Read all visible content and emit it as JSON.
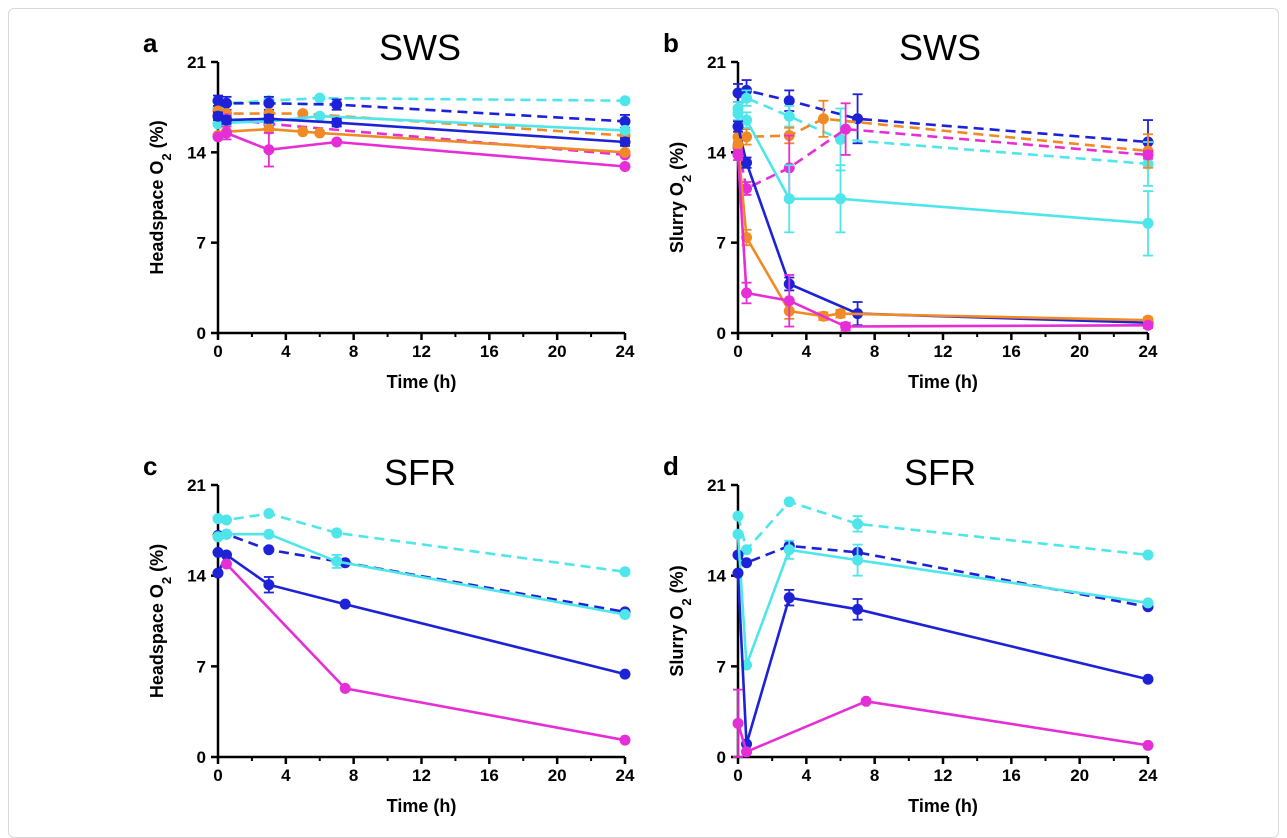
{
  "colors": {
    "cyan": "#4ee6ea",
    "blue": "#1e22d6",
    "magenta": "#e62ed6",
    "orange": "#f08a24"
  },
  "panels": [
    {
      "letter": "a",
      "title": "SWS",
      "ylabel": "Headspace O",
      "ysub": "2",
      "yunit": " (%)",
      "xlabel": "Time (h)"
    },
    {
      "letter": "b",
      "title": "SWS",
      "ylabel": "Slurry O",
      "ysub": "2",
      "yunit": " (%)",
      "xlabel": "Time (h)"
    },
    {
      "letter": "c",
      "title": "SFR",
      "ylabel": "Headspace O",
      "ysub": "2",
      "yunit": " (%)",
      "xlabel": "Time (h)"
    },
    {
      "letter": "d",
      "title": "SFR",
      "ylabel": "Slurry O",
      "ysub": "2",
      "yunit": " (%)",
      "xlabel": "Time (h)"
    }
  ],
  "chart_data": [
    {
      "type": "line",
      "title": "SWS",
      "xlabel": "Time (h)",
      "ylabel": "Headspace O2 (%)",
      "xlim": [
        0,
        24
      ],
      "ylim": [
        0,
        21
      ],
      "xticks": [
        0,
        4,
        8,
        12,
        16,
        20,
        24
      ],
      "yticks": [
        0,
        7,
        14,
        21
      ],
      "series": [
        {
          "color": "cyan",
          "dash": true,
          "points": [
            [
              0,
              17.4
            ],
            [
              0.5,
              17.8
            ],
            [
              3,
              18.0
            ],
            [
              6,
              18.2
            ],
            [
              24,
              18.0
            ]
          ],
          "errors": [
            0,
            0,
            0,
            0,
            0
          ]
        },
        {
          "color": "blue",
          "dash": true,
          "points": [
            [
              0,
              18.0
            ],
            [
              0.5,
              17.8
            ],
            [
              3,
              17.8
            ],
            [
              7,
              17.7
            ],
            [
              24,
              16.4
            ]
          ],
          "errors": [
            0.4,
            0.5,
            0.5,
            0.4,
            0.5
          ]
        },
        {
          "color": "orange",
          "dash": true,
          "points": [
            [
              0,
              17.2
            ],
            [
              0.5,
              17.0
            ],
            [
              3,
              17.0
            ],
            [
              5,
              17.0
            ],
            [
              24,
              15.3
            ]
          ],
          "errors": [
            0,
            0,
            0,
            0,
            0
          ]
        },
        {
          "color": "magenta",
          "dash": true,
          "points": [
            [
              0,
              16.8
            ],
            [
              0.5,
              16.6
            ],
            [
              3,
              16.2
            ],
            [
              24,
              13.8
            ]
          ],
          "errors": [
            0,
            0,
            0,
            0
          ]
        },
        {
          "color": "cyan",
          "dash": false,
          "points": [
            [
              0,
              16.2
            ],
            [
              0.5,
              16.3
            ],
            [
              3,
              16.4
            ],
            [
              6,
              16.8
            ],
            [
              24,
              15.7
            ]
          ],
          "errors": [
            0,
            0,
            0,
            0,
            0
          ]
        },
        {
          "color": "blue",
          "dash": false,
          "points": [
            [
              0,
              16.8
            ],
            [
              0.5,
              16.5
            ],
            [
              3,
              16.6
            ],
            [
              7,
              16.3
            ],
            [
              24,
              14.8
            ]
          ],
          "errors": [
            0.3,
            0.3,
            0.3,
            0.3,
            0.3
          ]
        },
        {
          "color": "orange",
          "dash": false,
          "points": [
            [
              0,
              15.3
            ],
            [
              0.5,
              15.6
            ],
            [
              3,
              15.8
            ],
            [
              5,
              15.6
            ],
            [
              6,
              15.5
            ],
            [
              24,
              14.0
            ]
          ],
          "errors": [
            0,
            0,
            0,
            0,
            0,
            0
          ]
        },
        {
          "color": "magenta",
          "dash": false,
          "points": [
            [
              0,
              15.2
            ],
            [
              0.5,
              15.5
            ],
            [
              3,
              14.2
            ],
            [
              7,
              14.8
            ],
            [
              24,
              12.9
            ]
          ],
          "errors": [
            0,
            0.5,
            1.3,
            0,
            0
          ]
        }
      ]
    },
    {
      "type": "line",
      "title": "SWS",
      "xlabel": "Time (h)",
      "ylabel": "Slurry O2 (%)",
      "xlim": [
        0,
        24
      ],
      "ylim": [
        0,
        21
      ],
      "xticks": [
        0,
        4,
        8,
        12,
        16,
        20,
        24
      ],
      "yticks": [
        0,
        7,
        14,
        21
      ],
      "series": [
        {
          "color": "blue",
          "dash": true,
          "points": [
            [
              0,
              18.6
            ],
            [
              0.5,
              18.8
            ],
            [
              3,
              18.0
            ],
            [
              7,
              16.6
            ],
            [
              24,
              14.8
            ]
          ],
          "errors": [
            0.7,
            0.8,
            0.8,
            1.9,
            1.7
          ]
        },
        {
          "color": "cyan",
          "dash": true,
          "points": [
            [
              0,
              17.4
            ],
            [
              0.5,
              18.2
            ],
            [
              3,
              16.8
            ],
            [
              6,
              15.0
            ],
            [
              24,
              13.1
            ]
          ],
          "errors": [
            0.5,
            0.6,
            0.8,
            2.4,
            1.7
          ]
        },
        {
          "color": "orange",
          "dash": true,
          "points": [
            [
              0,
              15.2
            ],
            [
              0.5,
              15.2
            ],
            [
              3,
              15.3
            ],
            [
              5,
              16.6
            ],
            [
              24,
              14.1
            ]
          ],
          "errors": [
            0.4,
            0.6,
            0.6,
            1.4,
            1.3
          ]
        },
        {
          "color": "magenta",
          "dash": true,
          "points": [
            [
              0,
              14.4
            ],
            [
              0.5,
              11.2
            ],
            [
              3,
              12.8
            ],
            [
              6.3,
              15.8
            ],
            [
              24,
              13.8
            ]
          ],
          "errors": [
            0.4,
            0.5,
            2.5,
            2.0,
            0.3
          ]
        },
        {
          "color": "cyan",
          "dash": false,
          "points": [
            [
              0,
              17.0
            ],
            [
              0.5,
              16.5
            ],
            [
              3,
              10.4
            ],
            [
              6,
              10.4
            ],
            [
              24,
              8.5
            ]
          ],
          "errors": [
            0.5,
            0.6,
            2.6,
            2.6,
            2.5
          ]
        },
        {
          "color": "blue",
          "dash": false,
          "points": [
            [
              0,
              16.0
            ],
            [
              0.5,
              13.2
            ],
            [
              3,
              3.8
            ],
            [
              7,
              1.5
            ],
            [
              24,
              0.8
            ]
          ],
          "errors": [
            0.4,
            0.4,
            0.5,
            0.9,
            0.4
          ]
        },
        {
          "color": "orange",
          "dash": false,
          "points": [
            [
              0,
              14.6
            ],
            [
              0.5,
              7.4
            ],
            [
              3,
              1.7
            ],
            [
              5,
              1.3
            ],
            [
              6,
              1.5
            ],
            [
              24,
              1.0
            ]
          ],
          "errors": [
            0.4,
            0.6,
            0.6,
            0.3,
            0.3,
            0.2
          ]
        },
        {
          "color": "magenta",
          "dash": false,
          "points": [
            [
              0,
              13.8
            ],
            [
              0.5,
              3.1
            ],
            [
              3,
              2.5
            ],
            [
              6.3,
              0.5
            ],
            [
              24,
              0.6
            ]
          ],
          "errors": [
            0.4,
            0.8,
            2.0,
            0.3,
            0.2
          ]
        }
      ]
    },
    {
      "type": "line",
      "title": "SFR",
      "xlabel": "Time (h)",
      "ylabel": "Headspace O2 (%)",
      "xlim": [
        0,
        24
      ],
      "ylim": [
        0,
        21
      ],
      "xticks": [
        0,
        4,
        8,
        12,
        16,
        20,
        24
      ],
      "yticks": [
        0,
        7,
        14,
        21
      ],
      "series": [
        {
          "color": "cyan",
          "dash": true,
          "points": [
            [
              0,
              18.4
            ],
            [
              0.5,
              18.3
            ],
            [
              3,
              18.8
            ],
            [
              7,
              17.3
            ],
            [
              24,
              14.3
            ]
          ],
          "errors": [
            0,
            0,
            0,
            0,
            0
          ]
        },
        {
          "color": "blue",
          "dash": true,
          "points": [
            [
              0,
              17.1
            ],
            [
              0.5,
              17.2
            ],
            [
              3,
              16.0
            ],
            [
              7.5,
              15.0
            ],
            [
              24,
              11.2
            ]
          ],
          "errors": [
            0,
            0,
            0,
            0,
            0
          ]
        },
        {
          "color": "cyan",
          "dash": false,
          "points": [
            [
              0,
              17.0
            ],
            [
              0.5,
              17.2
            ],
            [
              3,
              17.2
            ],
            [
              7,
              15.1
            ],
            [
              24,
              11.0
            ]
          ],
          "errors": [
            0,
            0,
            0,
            0.5,
            0
          ]
        },
        {
          "color": "blue",
          "dash": false,
          "points": [
            [
              0,
              14.2
            ],
            [
              0.5,
              15.6
            ],
            [
              3,
              13.3
            ],
            [
              7.5,
              11.8
            ],
            [
              24,
              6.4
            ]
          ],
          "errors": [
            0,
            0,
            0.6,
            0,
            0
          ]
        },
        {
          "color": "blue",
          "dash": false,
          "points": [
            [
              0,
              15.8
            ]
          ],
          "errors": [
            0
          ]
        },
        {
          "color": "magenta",
          "dash": false,
          "points": [
            [
              0.5,
              14.9
            ],
            [
              7.5,
              5.3
            ],
            [
              24,
              1.3
            ]
          ],
          "errors": [
            0,
            0,
            0
          ]
        }
      ]
    },
    {
      "type": "line",
      "title": "SFR",
      "xlabel": "Time (h)",
      "ylabel": "Slurry O2 (%)",
      "xlim": [
        0,
        24
      ],
      "ylim": [
        0,
        21
      ],
      "xticks": [
        0,
        4,
        8,
        12,
        16,
        20,
        24
      ],
      "yticks": [
        0,
        7,
        14,
        21
      ],
      "series": [
        {
          "color": "cyan",
          "dash": true,
          "points": [
            [
              0,
              18.6
            ],
            [
              0.5,
              16.0
            ],
            [
              3,
              19.7
            ],
            [
              7,
              18.0
            ],
            [
              24,
              15.6
            ]
          ],
          "errors": [
            0,
            0,
            0,
            0.6,
            0
          ]
        },
        {
          "color": "blue",
          "dash": true,
          "points": [
            [
              0,
              15.6
            ],
            [
              0.5,
              15.0
            ],
            [
              3,
              16.3
            ],
            [
              7,
              15.8
            ],
            [
              24,
              11.6
            ]
          ],
          "errors": [
            0,
            0,
            0,
            0,
            0
          ]
        },
        {
          "color": "cyan",
          "dash": false,
          "points": [
            [
              0,
              17.2
            ],
            [
              0.5,
              7.1
            ],
            [
              3,
              16.0
            ],
            [
              7,
              15.2
            ],
            [
              24,
              11.9
            ]
          ],
          "errors": [
            0,
            0,
            0.7,
            1.2,
            0
          ]
        },
        {
          "color": "blue",
          "dash": false,
          "points": [
            [
              0,
              14.2
            ],
            [
              0.5,
              1.0
            ],
            [
              3,
              12.3
            ],
            [
              7,
              11.4
            ],
            [
              24,
              6.0
            ]
          ],
          "errors": [
            0,
            0,
            0.6,
            0.8,
            0
          ]
        },
        {
          "color": "magenta",
          "dash": false,
          "points": [
            [
              0,
              2.6
            ],
            [
              0.5,
              0.4
            ],
            [
              7.5,
              4.3
            ],
            [
              24,
              0.9
            ]
          ],
          "errors": [
            2.6,
            0,
            0,
            0
          ]
        }
      ]
    }
  ]
}
